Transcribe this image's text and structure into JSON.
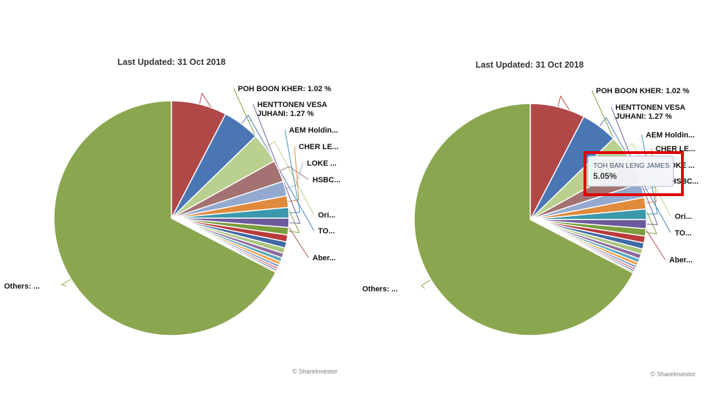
{
  "chart_data": [
    {
      "type": "pie",
      "subtitle": "Last Updated: 31 Oct 2018",
      "credit": "© ShareInvestor",
      "slices": [
        {
          "name": "Others: ...",
          "value": 67.1,
          "color": "#8aa64f"
        },
        {
          "name": "Aber...",
          "value": 7.6,
          "color": "#b04848"
        },
        {
          "name": "TO...",
          "value": 5.05,
          "color": "#4a76b4"
        },
        {
          "name": "Ori...",
          "value": 4.2,
          "color": "#b9d08e"
        },
        {
          "name": "HSBC...",
          "value": 3.0,
          "color": "#a47272"
        },
        {
          "name": "LOKE ...",
          "value": 2.0,
          "color": "#93a9cf"
        },
        {
          "name": "CHER LE...",
          "value": 1.6,
          "color": "#e08a3c"
        },
        {
          "name": "AEM Holdin...",
          "value": 1.45,
          "color": "#3c98ad"
        },
        {
          "name": "HENTTONEN VESA JUHANI: 1.27 %",
          "value": 1.27,
          "color": "#6d5a9c"
        },
        {
          "name": "POH BOON KHER: 1.02 %",
          "value": 1.02,
          "color": "#7a9e3e"
        },
        {
          "name": "",
          "value": 0.95,
          "color": "#b83a3a"
        },
        {
          "name": "",
          "value": 0.85,
          "color": "#4169a6"
        },
        {
          "name": "",
          "value": 0.75,
          "color": "#a9c57a"
        },
        {
          "name": "",
          "value": 0.65,
          "color": "#8d6a9c"
        },
        {
          "name": "",
          "value": 0.55,
          "color": "#5aa7bc"
        },
        {
          "name": "",
          "value": 0.45,
          "color": "#f39c38"
        },
        {
          "name": "",
          "value": 0.38,
          "color": "#7f9dcb"
        },
        {
          "name": "",
          "value": 0.3,
          "color": "#d86f6f"
        },
        {
          "name": "",
          "value": 0.25,
          "color": "#3e6fb0"
        },
        {
          "name": "",
          "value": 0.2,
          "color": "#c5a35a"
        }
      ]
    },
    {
      "type": "pie",
      "subtitle": "Last Updated: 31 Oct 2018",
      "credit": "© ShareInvestor",
      "tooltip": {
        "name": "TOH BAN LENG JAMES",
        "value": "5.05%"
      },
      "highlight_box_color": "#e00000",
      "slices": [
        {
          "name": "Others: ...",
          "value": 67.1,
          "color": "#8aa64f"
        },
        {
          "name": "Aber...",
          "value": 7.6,
          "color": "#b04848"
        },
        {
          "name": "TO...",
          "value": 5.05,
          "color": "#4a76b4"
        },
        {
          "name": "Ori...",
          "value": 4.2,
          "color": "#b9d08e"
        },
        {
          "name": "HSBC...",
          "value": 3.0,
          "color": "#a47272"
        },
        {
          "name": "LOKE ...",
          "value": 2.0,
          "color": "#93a9cf"
        },
        {
          "name": "CHER LE...",
          "value": 1.6,
          "color": "#e08a3c"
        },
        {
          "name": "AEM Holdin...",
          "value": 1.45,
          "color": "#3c98ad"
        },
        {
          "name": "HENTTONEN VESA JUHANI: 1.27 %",
          "value": 1.27,
          "color": "#6d5a9c"
        },
        {
          "name": "POH BOON KHER: 1.02 %",
          "value": 1.02,
          "color": "#7a9e3e"
        },
        {
          "name": "",
          "value": 0.95,
          "color": "#b83a3a"
        },
        {
          "name": "",
          "value": 0.85,
          "color": "#4169a6"
        },
        {
          "name": "",
          "value": 0.75,
          "color": "#a9c57a"
        },
        {
          "name": "",
          "value": 0.65,
          "color": "#8d6a9c"
        },
        {
          "name": "",
          "value": 0.55,
          "color": "#5aa7bc"
        },
        {
          "name": "",
          "value": 0.45,
          "color": "#f39c38"
        },
        {
          "name": "",
          "value": 0.38,
          "color": "#7f9dcb"
        },
        {
          "name": "",
          "value": 0.3,
          "color": "#d86f6f"
        },
        {
          "name": "",
          "value": 0.25,
          "color": "#3e6fb0"
        },
        {
          "name": "",
          "value": 0.2,
          "color": "#c5a35a"
        }
      ]
    }
  ]
}
